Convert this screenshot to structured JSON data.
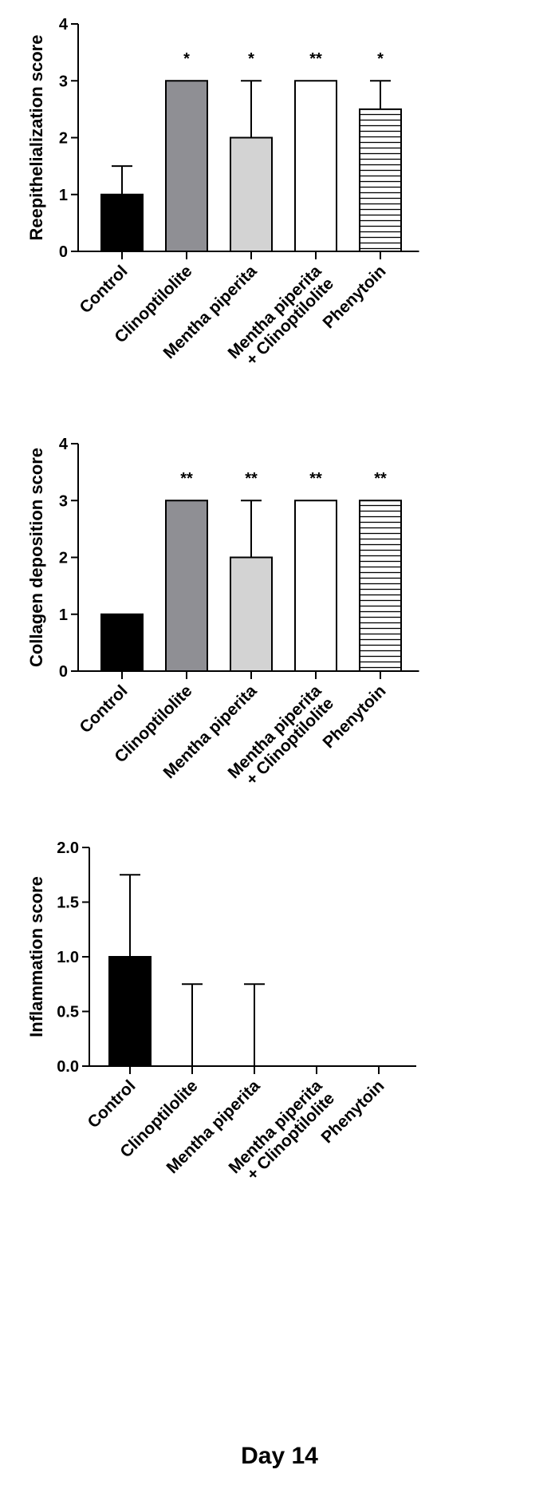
{
  "chart_data": [
    {
      "type": "bar",
      "categories": [
        "Control",
        "Clinoptilolite",
        "Mentha piperita",
        [
          "Mentha piperita",
          "+ Clinoptilolite"
        ],
        "Phenytoin"
      ],
      "values": [
        1,
        3,
        2,
        3,
        2.5
      ],
      "error_upper": [
        1.5,
        3,
        3,
        3,
        3
      ],
      "significance": [
        "",
        "*",
        "*",
        "**",
        "*"
      ],
      "fills": [
        "#000000",
        "#8f8f94",
        "#d3d3d3",
        "#ffffff",
        "hatch"
      ],
      "ylabel": "Reepithelialization score",
      "ylim": [
        0,
        4
      ],
      "yticks": [
        "0",
        "1",
        "2",
        "3",
        "4"
      ],
      "grid": false
    },
    {
      "type": "bar",
      "categories": [
        "Control",
        "Clinoptilolite",
        "Mentha piperita",
        [
          "Mentha piperita",
          "+ Clinoptilolite"
        ],
        "Phenytoin"
      ],
      "values": [
        1,
        3,
        2,
        3,
        3
      ],
      "error_upper": [
        1,
        3,
        3,
        3,
        3
      ],
      "significance": [
        "",
        "**",
        "**",
        "**",
        "**"
      ],
      "fills": [
        "#000000",
        "#8f8f94",
        "#d3d3d3",
        "#ffffff",
        "hatch"
      ],
      "ylabel": "Collagen deposition score",
      "ylim": [
        0,
        4
      ],
      "yticks": [
        "0",
        "1",
        "2",
        "3",
        "4"
      ],
      "grid": false
    },
    {
      "type": "bar",
      "categories": [
        "Control",
        "Clinoptilolite",
        "Mentha piperita",
        [
          "Mentha piperita",
          "+ Clinoptilolite"
        ],
        "Phenytoin"
      ],
      "values": [
        1,
        0,
        0,
        0,
        0
      ],
      "error_upper": [
        1.75,
        0.75,
        0.75,
        0,
        0
      ],
      "significance": [
        "",
        "",
        "",
        "",
        ""
      ],
      "fills": [
        "#000000",
        "#8f8f94",
        "#d3d3d3",
        "#ffffff",
        "hatch"
      ],
      "ylabel": "Inflammation score",
      "ylim": [
        0,
        2
      ],
      "yticks": [
        "0.0",
        "0.5",
        "1.0",
        "1.5",
        "2.0"
      ],
      "grid": false
    }
  ],
  "caption": "Day 14"
}
